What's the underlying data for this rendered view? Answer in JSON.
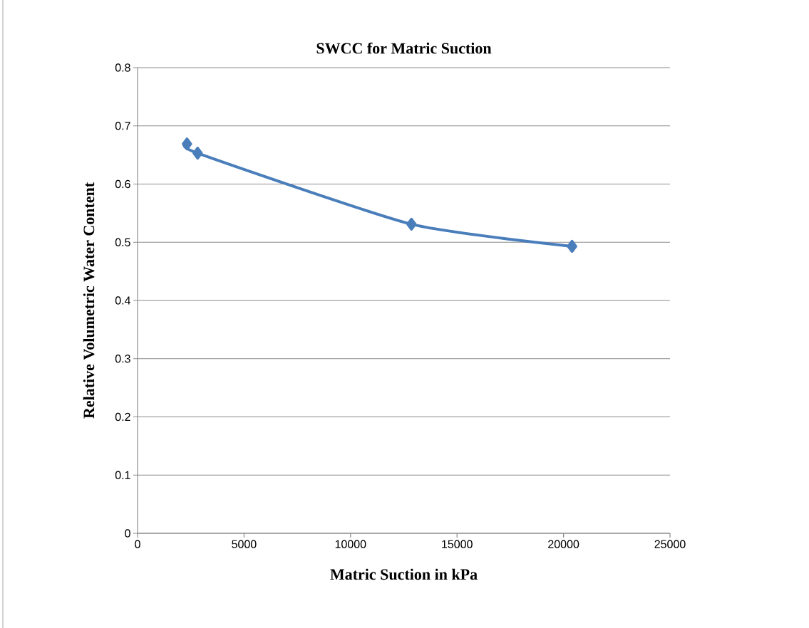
{
  "chart_data": {
    "type": "line",
    "title": "SWCC for Matric Suction",
    "xlabel": "Matric Suction in kPa",
    "ylabel": "Relative Volumetric Water Content",
    "x": [
      2320,
      2820,
      12860,
      20400
    ],
    "series": [
      {
        "color": "#4a7ebb",
        "values": [
          0.669,
          0.653,
          0.531,
          0.493
        ]
      }
    ],
    "xlim": [
      0,
      25000
    ],
    "xticks": [
      0,
      5000,
      10000,
      15000,
      20000,
      25000
    ],
    "ylim": [
      0,
      0.8
    ],
    "yticks": [
      0,
      0.1,
      0.2,
      0.3,
      0.4,
      0.5,
      0.6,
      0.7,
      0.8
    ],
    "grid": "y",
    "marker": "diamond",
    "line_style": "solid"
  }
}
